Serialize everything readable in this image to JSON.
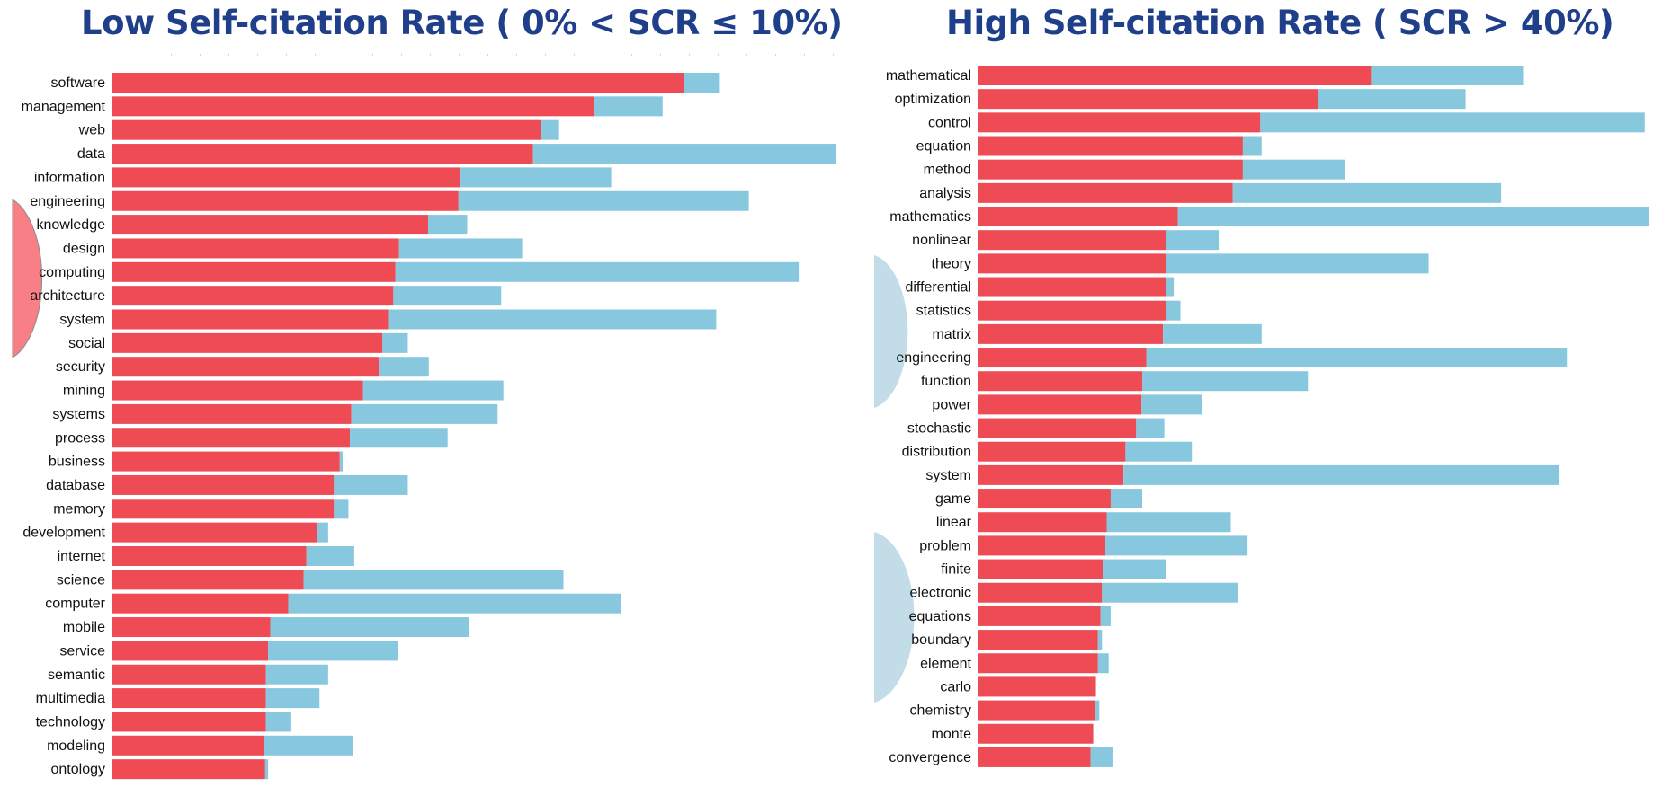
{
  "colors": {
    "title": "#1f3f8a",
    "self_citation": "#ef4b54",
    "other": "#88c8df",
    "left_marker": "#f77f85",
    "right_marker": "#c3dde8"
  },
  "chart_data": [
    {
      "type": "bar",
      "orientation": "horizontal",
      "stacked": true,
      "title": "Low Self-citation Rate ( 0% < SCR ≤ 10%)",
      "xlabel": "",
      "ylabel": "",
      "xlim": [
        0,
        100
      ],
      "categories": [
        "software",
        "management",
        "web",
        "data",
        "information",
        "engineering",
        "knowledge",
        "design",
        "computing",
        "architecture",
        "system",
        "social",
        "security",
        "mining",
        "systems",
        "process",
        "business",
        "database",
        "memory",
        "development",
        "internet",
        "science",
        "computer",
        "mobile",
        "service",
        "semantic",
        "multimedia",
        "technology",
        "modeling",
        "ontology"
      ],
      "series": [
        {
          "color": "#ef4b54",
          "values": [
            79.0,
            66.5,
            59.2,
            58.1,
            48.1,
            47.8,
            43.6,
            39.6,
            39.1,
            38.8,
            38.1,
            37.3,
            36.8,
            34.6,
            33.0,
            32.8,
            31.4,
            30.6,
            30.6,
            28.2,
            26.8,
            26.4,
            24.3,
            21.8,
            21.5,
            21.2,
            21.2,
            21.2,
            20.9,
            21.1
          ]
        },
        {
          "color": "#88c8df",
          "values": [
            4.9,
            9.5,
            2.5,
            41.9,
            20.8,
            40.1,
            5.4,
            17.0,
            55.7,
            14.9,
            45.3,
            3.5,
            6.9,
            19.4,
            20.2,
            13.5,
            0.4,
            10.2,
            2.0,
            1.6,
            6.6,
            35.9,
            45.9,
            27.5,
            17.9,
            8.6,
            7.4,
            3.5,
            12.3,
            0.4
          ]
        }
      ]
    },
    {
      "type": "bar",
      "orientation": "horizontal",
      "stacked": true,
      "title": "High Self-citation Rate ( SCR > 40%)",
      "xlabel": "",
      "ylabel": "",
      "xlim": [
        0,
        100
      ],
      "categories": [
        "mathematical",
        "optimization",
        "control",
        "equation",
        "method",
        "analysis",
        "mathematics",
        "nonlinear",
        "theory",
        "differential",
        "statistics",
        "matrix",
        "engineering",
        "function",
        "power",
        "stochastic",
        "distribution",
        "system",
        "game",
        "linear",
        "problem",
        "finite",
        "electronic",
        "equations",
        "boundary",
        "element",
        "carlo",
        "chemistry",
        "monte",
        "convergence"
      ],
      "series": [
        {
          "color": "#ef4b54",
          "values": [
            58.5,
            50.6,
            42.0,
            39.4,
            39.4,
            37.9,
            29.7,
            28.0,
            28.0,
            28.0,
            27.9,
            27.5,
            25.0,
            24.4,
            24.3,
            23.5,
            21.9,
            21.6,
            19.7,
            19.1,
            18.9,
            18.5,
            18.4,
            18.2,
            17.8,
            17.8,
            17.5,
            17.4,
            17.1,
            16.7
          ]
        },
        {
          "color": "#88c8df",
          "values": [
            22.8,
            22.0,
            57.3,
            2.8,
            15.2,
            40.0,
            70.3,
            7.8,
            39.1,
            1.1,
            2.2,
            14.7,
            62.7,
            24.7,
            9.0,
            4.2,
            9.9,
            65.0,
            4.7,
            18.5,
            21.2,
            9.4,
            20.2,
            1.5,
            0.6,
            1.6,
            0.0,
            0.6,
            0.0,
            3.4
          ]
        }
      ]
    }
  ]
}
